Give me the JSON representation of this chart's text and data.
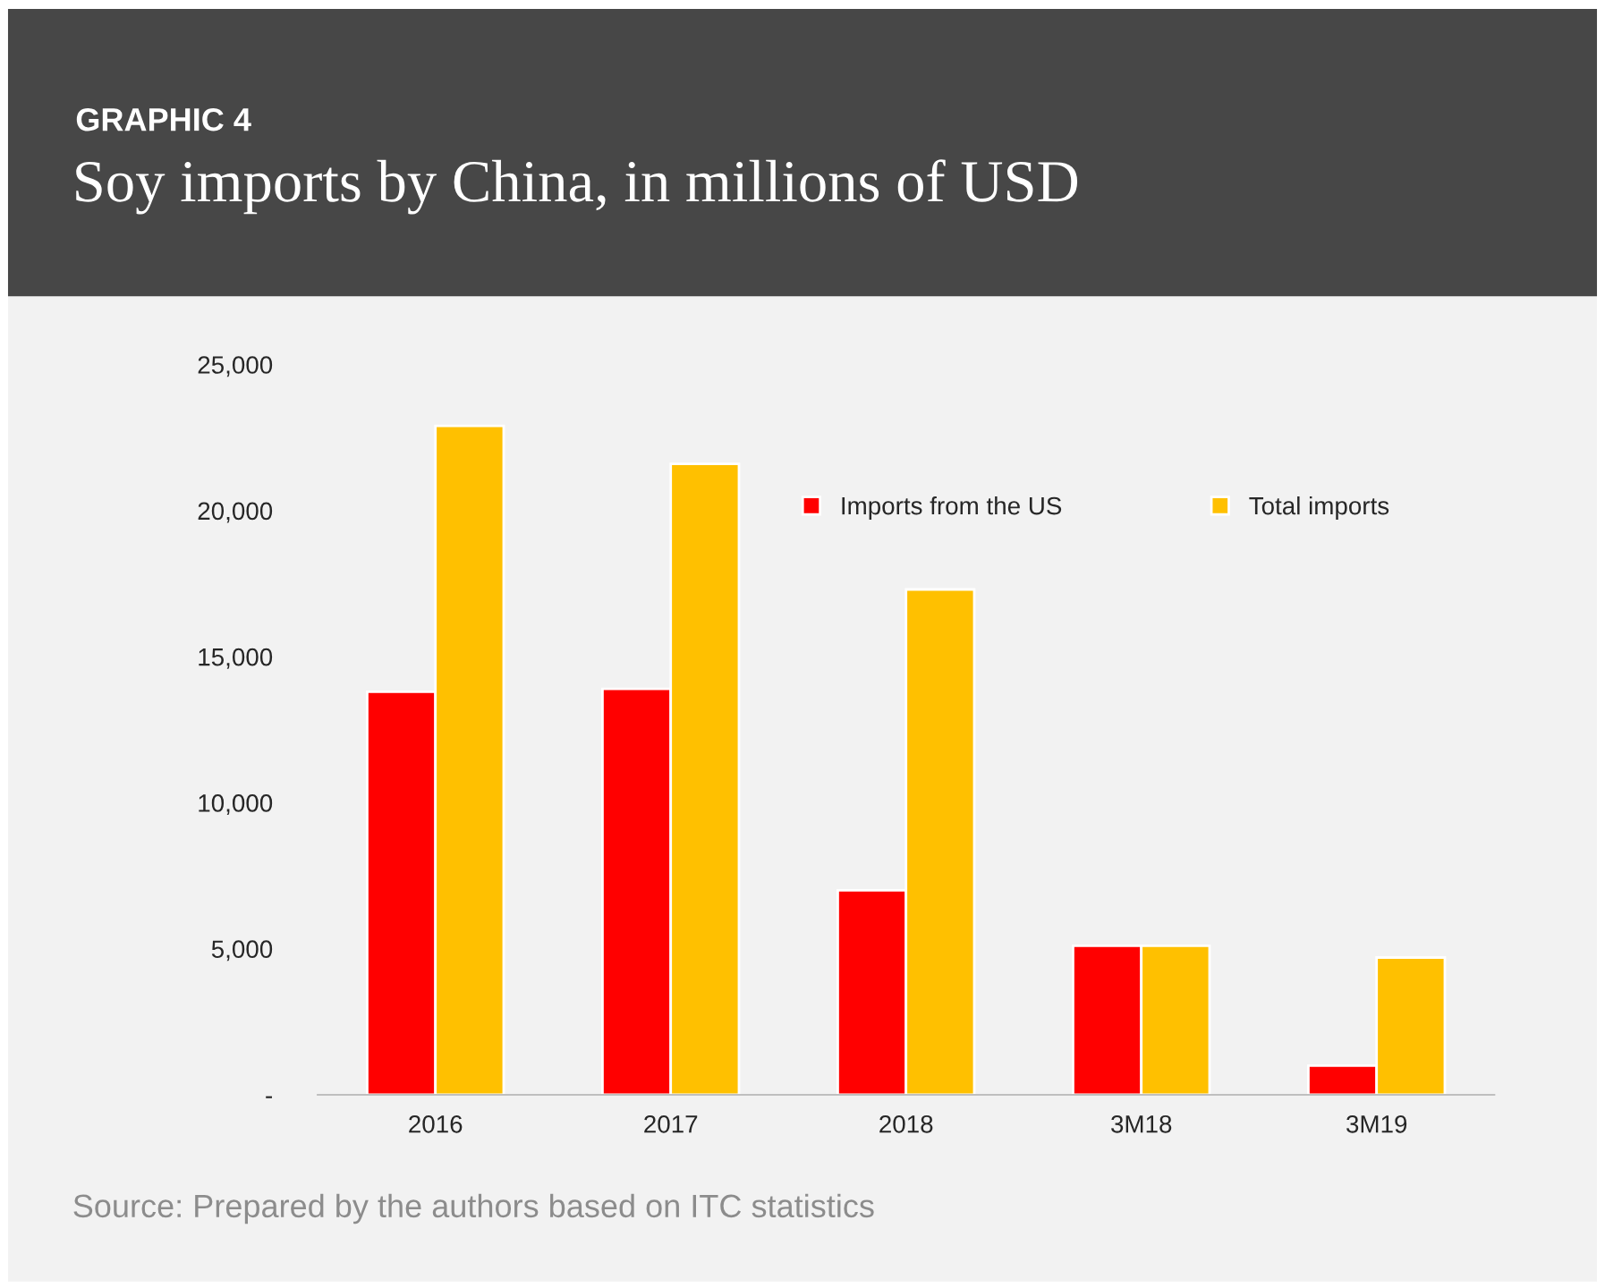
{
  "chart_data": {
    "type": "bar",
    "subtitle": "GRAPHIC 4",
    "title": "Soy imports by China, in millions of USD",
    "categories": [
      "2016",
      "2017",
      "2018",
      "3M18",
      "3M19"
    ],
    "series": [
      {
        "name": "Imports from the US",
        "color": "#ff0000",
        "values": [
          13800,
          13900,
          7000,
          5100,
          1000
        ]
      },
      {
        "name": "Total imports",
        "color": "#ffc000",
        "values": [
          22900,
          21600,
          17300,
          5100,
          4700
        ]
      }
    ],
    "ylim": [
      0,
      25000
    ],
    "yticks": [
      {
        "value": 0,
        "label": "-"
      },
      {
        "value": 5000,
        "label": "5,000"
      },
      {
        "value": 10000,
        "label": "10,000"
      },
      {
        "value": 15000,
        "label": "15,000"
      },
      {
        "value": 20000,
        "label": "20,000"
      },
      {
        "value": 25000,
        "label": "25,000"
      }
    ],
    "grid": false,
    "legend": "top right",
    "annotations": [
      "Source: Prepared by the authors based on ITC statistics"
    ]
  }
}
